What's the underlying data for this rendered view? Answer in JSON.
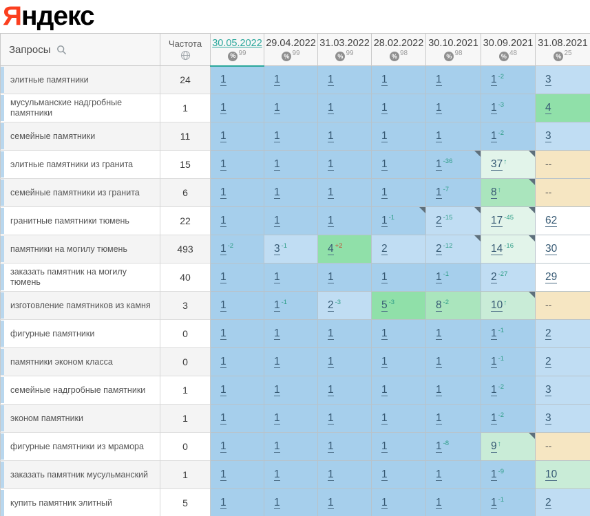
{
  "logo": {
    "letter_ya": "Я",
    "rest": "ндекс"
  },
  "colors": {
    "accent_teal": "#2aa79b",
    "delta_good": "#2e9d87",
    "delta_bad": "#c64a33",
    "logo_red": "#fb3f1f",
    "cell_pos1": "#a6cfec",
    "cell_pos2_3": "#c0ddf3",
    "cell_pos4_5": "#90e0a9",
    "cell_pos8": "#aae5bd",
    "cell_pos9_10": "#c9ecd7",
    "cell_pos11_49": "#e2f4ea",
    "cell_pos50plus": "#ffffff",
    "cell_absent": "#f6e6c2"
  },
  "header": {
    "query_label": "Запросы",
    "frequency_label": "Частота",
    "icons": {
      "search": "search-icon",
      "globe": "globe-icon",
      "percent": "percent-icon"
    },
    "columns": [
      {
        "date": "30.05.2022",
        "quality": "99",
        "active": true
      },
      {
        "date": "29.04.2022",
        "quality": "99",
        "active": false
      },
      {
        "date": "31.03.2022",
        "quality": "99",
        "active": false
      },
      {
        "date": "28.02.2022",
        "quality": "98",
        "active": false
      },
      {
        "date": "30.10.2021",
        "quality": "98",
        "active": false
      },
      {
        "date": "30.09.2021",
        "quality": "48",
        "active": false
      },
      {
        "date": "31.08.2021",
        "quality": "25",
        "active": false
      }
    ]
  },
  "rows": [
    {
      "query": "элитные памятники",
      "frequency": "24",
      "cells": [
        {
          "v": "1",
          "bg": "b1"
        },
        {
          "v": "1",
          "bg": "b1"
        },
        {
          "v": "1",
          "bg": "b1"
        },
        {
          "v": "1",
          "bg": "b1"
        },
        {
          "v": "1",
          "bg": "b1"
        },
        {
          "v": "1",
          "bg": "b1",
          "d": "-2",
          "s": "good"
        },
        {
          "v": "3",
          "bg": "b2"
        }
      ]
    },
    {
      "query": "мусульманские надгробные памятники",
      "frequency": "1",
      "cells": [
        {
          "v": "1",
          "bg": "b1"
        },
        {
          "v": "1",
          "bg": "b1"
        },
        {
          "v": "1",
          "bg": "b1"
        },
        {
          "v": "1",
          "bg": "b1"
        },
        {
          "v": "1",
          "bg": "b1"
        },
        {
          "v": "1",
          "bg": "b1",
          "d": "-3",
          "s": "good"
        },
        {
          "v": "4",
          "bg": "g4"
        }
      ]
    },
    {
      "query": "семейные памятники",
      "frequency": "11",
      "cells": [
        {
          "v": "1",
          "bg": "b1"
        },
        {
          "v": "1",
          "bg": "b1"
        },
        {
          "v": "1",
          "bg": "b1"
        },
        {
          "v": "1",
          "bg": "b1"
        },
        {
          "v": "1",
          "bg": "b1"
        },
        {
          "v": "1",
          "bg": "b1",
          "d": "-2",
          "s": "good"
        },
        {
          "v": "3",
          "bg": "b2"
        }
      ]
    },
    {
      "query": "элитные памятники из гранита",
      "frequency": "15",
      "cells": [
        {
          "v": "1",
          "bg": "b1"
        },
        {
          "v": "1",
          "bg": "b1"
        },
        {
          "v": "1",
          "bg": "b1"
        },
        {
          "v": "1",
          "bg": "b1"
        },
        {
          "v": "1",
          "bg": "b1",
          "d": "-36",
          "s": "good",
          "corner": true
        },
        {
          "v": "37",
          "bg": "pg",
          "arrow": true,
          "corner": true
        },
        {
          "v": "--",
          "bg": "na",
          "na": true
        }
      ]
    },
    {
      "query": "семейные памятники из гранита",
      "frequency": "6",
      "cells": [
        {
          "v": "1",
          "bg": "b1"
        },
        {
          "v": "1",
          "bg": "b1"
        },
        {
          "v": "1",
          "bg": "b1"
        },
        {
          "v": "1",
          "bg": "b1"
        },
        {
          "v": "1",
          "bg": "b1",
          "d": "-7",
          "s": "good"
        },
        {
          "v": "8",
          "bg": "g8",
          "arrow": true,
          "corner": true
        },
        {
          "v": "--",
          "bg": "na",
          "na": true
        }
      ]
    },
    {
      "query": "гранитные памятники тюмень",
      "frequency": "22",
      "cells": [
        {
          "v": "1",
          "bg": "b1"
        },
        {
          "v": "1",
          "bg": "b1"
        },
        {
          "v": "1",
          "bg": "b1"
        },
        {
          "v": "1",
          "bg": "b1",
          "d": "-1",
          "s": "good",
          "corner": true
        },
        {
          "v": "2",
          "bg": "b2",
          "d": "-15",
          "s": "good",
          "corner": true
        },
        {
          "v": "17",
          "bg": "pg",
          "d": "-45",
          "s": "good",
          "corner": true
        },
        {
          "v": "62",
          "bg": "w"
        }
      ]
    },
    {
      "query": "памятники на могилу тюмень",
      "frequency": "493",
      "cells": [
        {
          "v": "1",
          "bg": "b1",
          "d": "-2",
          "s": "good"
        },
        {
          "v": "3",
          "bg": "b2",
          "d": "-1",
          "s": "good"
        },
        {
          "v": "4",
          "bg": "g4",
          "d": "+2",
          "s": "bad"
        },
        {
          "v": "2",
          "bg": "b2"
        },
        {
          "v": "2",
          "bg": "b2",
          "d": "-12",
          "s": "good",
          "corner": true
        },
        {
          "v": "14",
          "bg": "pg",
          "d": "-16",
          "s": "good",
          "corner": true
        },
        {
          "v": "30",
          "bg": "w"
        }
      ]
    },
    {
      "query": "заказать памятник на могилу тюмень",
      "frequency": "40",
      "cells": [
        {
          "v": "1",
          "bg": "b1"
        },
        {
          "v": "1",
          "bg": "b1"
        },
        {
          "v": "1",
          "bg": "b1"
        },
        {
          "v": "1",
          "bg": "b1"
        },
        {
          "v": "1",
          "bg": "b1",
          "d": "-1",
          "s": "good"
        },
        {
          "v": "2",
          "bg": "b2",
          "d": "-27",
          "s": "good"
        },
        {
          "v": "29",
          "bg": "w"
        }
      ]
    },
    {
      "query": "изготовление памятников из камня",
      "frequency": "3",
      "cells": [
        {
          "v": "1",
          "bg": "b1"
        },
        {
          "v": "1",
          "bg": "b1",
          "d": "-1",
          "s": "good"
        },
        {
          "v": "2",
          "bg": "b2",
          "d": "-3",
          "s": "good"
        },
        {
          "v": "5",
          "bg": "g4",
          "d": "-3",
          "s": "good"
        },
        {
          "v": "8",
          "bg": "g8",
          "d": "-2",
          "s": "good"
        },
        {
          "v": "10",
          "bg": "g10",
          "arrow": true,
          "corner": true
        },
        {
          "v": "--",
          "bg": "na",
          "na": true
        }
      ]
    },
    {
      "query": "фигурные памятники",
      "frequency": "0",
      "cells": [
        {
          "v": "1",
          "bg": "b1"
        },
        {
          "v": "1",
          "bg": "b1"
        },
        {
          "v": "1",
          "bg": "b1"
        },
        {
          "v": "1",
          "bg": "b1"
        },
        {
          "v": "1",
          "bg": "b1"
        },
        {
          "v": "1",
          "bg": "b1",
          "d": "-1",
          "s": "good"
        },
        {
          "v": "2",
          "bg": "b2"
        }
      ]
    },
    {
      "query": "памятники эконом класса",
      "frequency": "0",
      "cells": [
        {
          "v": "1",
          "bg": "b1"
        },
        {
          "v": "1",
          "bg": "b1"
        },
        {
          "v": "1",
          "bg": "b1"
        },
        {
          "v": "1",
          "bg": "b1"
        },
        {
          "v": "1",
          "bg": "b1"
        },
        {
          "v": "1",
          "bg": "b1",
          "d": "-1",
          "s": "good"
        },
        {
          "v": "2",
          "bg": "b2"
        }
      ]
    },
    {
      "query": "семейные надгробные памятники",
      "frequency": "1",
      "cells": [
        {
          "v": "1",
          "bg": "b1"
        },
        {
          "v": "1",
          "bg": "b1"
        },
        {
          "v": "1",
          "bg": "b1"
        },
        {
          "v": "1",
          "bg": "b1"
        },
        {
          "v": "1",
          "bg": "b1"
        },
        {
          "v": "1",
          "bg": "b1",
          "d": "-2",
          "s": "good"
        },
        {
          "v": "3",
          "bg": "b2"
        }
      ]
    },
    {
      "query": "эконом памятники",
      "frequency": "1",
      "cells": [
        {
          "v": "1",
          "bg": "b1"
        },
        {
          "v": "1",
          "bg": "b1"
        },
        {
          "v": "1",
          "bg": "b1"
        },
        {
          "v": "1",
          "bg": "b1"
        },
        {
          "v": "1",
          "bg": "b1"
        },
        {
          "v": "1",
          "bg": "b1",
          "d": "-2",
          "s": "good"
        },
        {
          "v": "3",
          "bg": "b2"
        }
      ]
    },
    {
      "query": "фигурные памятники из мрамора",
      "frequency": "0",
      "cells": [
        {
          "v": "1",
          "bg": "b1"
        },
        {
          "v": "1",
          "bg": "b1"
        },
        {
          "v": "1",
          "bg": "b1"
        },
        {
          "v": "1",
          "bg": "b1"
        },
        {
          "v": "1",
          "bg": "b1",
          "d": "-8",
          "s": "good"
        },
        {
          "v": "9",
          "bg": "g10",
          "arrow": true,
          "corner": true
        },
        {
          "v": "--",
          "bg": "na",
          "na": true
        }
      ]
    },
    {
      "query": "заказать памятник мусульманский",
      "frequency": "1",
      "cells": [
        {
          "v": "1",
          "bg": "b1"
        },
        {
          "v": "1",
          "bg": "b1"
        },
        {
          "v": "1",
          "bg": "b1"
        },
        {
          "v": "1",
          "bg": "b1"
        },
        {
          "v": "1",
          "bg": "b1"
        },
        {
          "v": "1",
          "bg": "b1",
          "d": "-9",
          "s": "good"
        },
        {
          "v": "10",
          "bg": "g10"
        }
      ]
    },
    {
      "query": "купить памятник элитный",
      "frequency": "5",
      "cells": [
        {
          "v": "1",
          "bg": "b1"
        },
        {
          "v": "1",
          "bg": "b1"
        },
        {
          "v": "1",
          "bg": "b1"
        },
        {
          "v": "1",
          "bg": "b1"
        },
        {
          "v": "1",
          "bg": "b1"
        },
        {
          "v": "1",
          "bg": "b1",
          "d": "-1",
          "s": "good"
        },
        {
          "v": "2",
          "bg": "b2"
        }
      ]
    }
  ]
}
